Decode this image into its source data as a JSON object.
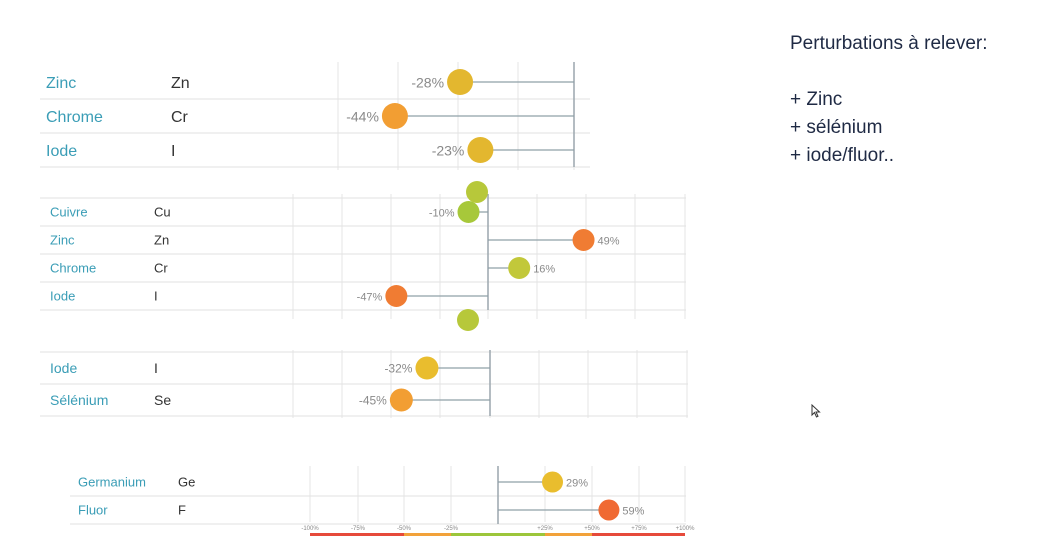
{
  "notes": {
    "title": "Perturbations à relever:",
    "items": [
      "+ Zinc",
      "+ sélénium",
      "+ iode/fluor.."
    ]
  },
  "colors": {
    "label": "#3a9db6",
    "green": "#a7c83a",
    "yellow_green": "#c9c83a",
    "yellow": "#e9bd2e",
    "orange": "#f29e33",
    "deep_orange": "#f07c33",
    "scale_red": "#e64a3b",
    "scale_orange": "#f2a23a",
    "scale_green": "#9cc63b"
  },
  "charts": [
    {
      "id": "chart-1",
      "rows": [
        {
          "name": "Zinc",
          "symbol": "Zn",
          "value": -28,
          "label": "-28%",
          "color": "#e3b72f"
        },
        {
          "name": "Chrome",
          "symbol": "Cr",
          "value": -44,
          "label": "-44%",
          "color": "#f29e33"
        },
        {
          "name": "Iode",
          "symbol": "I",
          "value": -23,
          "label": "-23%",
          "color": "#e3b72f"
        }
      ]
    },
    {
      "id": "chart-2",
      "rows": [
        {
          "name": "Cuivre",
          "symbol": "Cu",
          "value": -10,
          "label": "-10%",
          "color": "#a7c83a"
        },
        {
          "name": "Zinc",
          "symbol": "Zn",
          "value": 49,
          "label": "49%",
          "color": "#f07c33"
        },
        {
          "name": "Chrome",
          "symbol": "Cr",
          "value": 16,
          "label": "16%",
          "color": "#c2c83a"
        },
        {
          "name": "Iode",
          "symbol": "I",
          "value": -47,
          "label": "-47%",
          "color": "#f07c33"
        }
      ]
    },
    {
      "id": "chart-3",
      "rows": [
        {
          "name": "Iode",
          "symbol": "I",
          "value": -32,
          "label": "-32%",
          "color": "#e9bd2e"
        },
        {
          "name": "Sélénium",
          "symbol": "Se",
          "value": -45,
          "label": "-45%",
          "color": "#f29e33"
        }
      ]
    },
    {
      "id": "chart-4",
      "rows": [
        {
          "name": "Germanium",
          "symbol": "Ge",
          "value": 29,
          "label": "29%",
          "color": "#e9bd2e"
        },
        {
          "name": "Fluor",
          "symbol": "F",
          "value": 59,
          "label": "59%",
          "color": "#f06a33"
        }
      ],
      "ticks": [
        "-100%",
        "-75%",
        "-50%",
        "-25%",
        "+25%",
        "+50%",
        "+75%",
        "+100%"
      ]
    }
  ]
}
